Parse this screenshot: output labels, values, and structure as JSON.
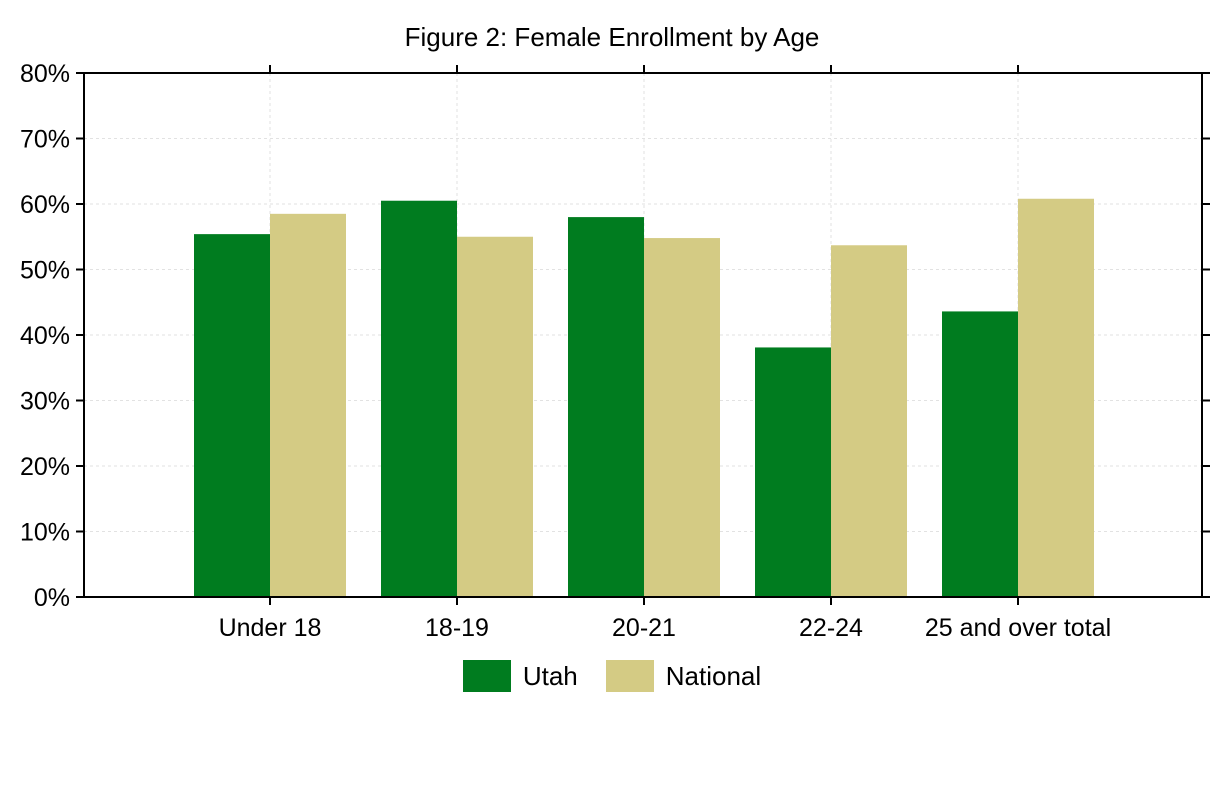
{
  "chart_data": {
    "type": "bar",
    "title": "Figure 2: Female Enrollment by Age",
    "xlabel": "",
    "ylabel": "",
    "categories": [
      "Under 18",
      "18-19",
      "20-21",
      "22-24",
      "25 and over total"
    ],
    "series": [
      {
        "name": "Utah",
        "color": "#007c1f",
        "values": [
          55.4,
          60.5,
          58.0,
          38.1,
          43.6
        ]
      },
      {
        "name": "National",
        "color": "#d4cb84",
        "values": [
          58.5,
          55.0,
          54.8,
          53.7,
          60.8
        ]
      }
    ],
    "ylim": [
      0,
      80
    ],
    "yticks": [
      "0%",
      "10%",
      "20%",
      "30%",
      "40%",
      "50%",
      "60%",
      "70%",
      "80%"
    ],
    "grid": true,
    "legend": "bottom-center"
  }
}
